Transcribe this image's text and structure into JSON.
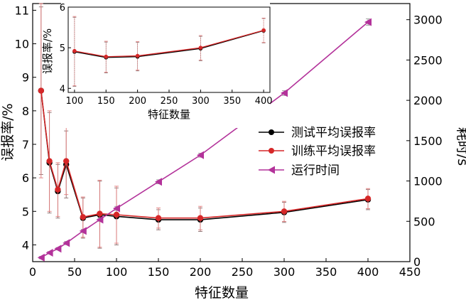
{
  "chart_data": [
    {
      "type": "line",
      "xlabel": "特征数量",
      "ylabel_left": "误报率/%",
      "ylabel_right": "耗时/s",
      "xlim": [
        0,
        450
      ],
      "ylim_left": [
        3.5,
        11.2
      ],
      "ylim_right": [
        0,
        3200
      ],
      "x_ticks": [
        "0",
        "50",
        "100",
        "150",
        "200",
        "250",
        "300",
        "350",
        "400",
        "450"
      ],
      "y_left_ticks": [
        "4",
        "5",
        "6",
        "7",
        "8",
        "9",
        "10",
        "11"
      ],
      "y_right_ticks": [
        "0",
        "500",
        "1000",
        "1500",
        "2000",
        "2500",
        "3000"
      ],
      "legend": {
        "position": "right",
        "entries": [
          "测试平均误报率",
          "训练平均误报率",
          "运行时间"
        ]
      },
      "grid": false,
      "series": [
        {
          "name": "测试平均误报率",
          "axis": "left",
          "color": "#000000",
          "marker": "circle",
          "x": [
            10,
            20,
            30,
            40,
            60,
            80,
            100,
            150,
            200,
            300,
            400
          ],
          "y": [
            8.6,
            6.45,
            5.6,
            6.4,
            4.8,
            4.9,
            4.85,
            4.75,
            4.75,
            4.97,
            5.35
          ],
          "err": [
            2.5,
            1.5,
            0.8,
            1.0,
            0.6,
            1.0,
            0.85,
            0.3,
            0.35,
            0.3,
            0.3
          ]
        },
        {
          "name": "训练平均误报率",
          "axis": "left",
          "color": "#d62728",
          "marker": "circle",
          "x": [
            10,
            20,
            30,
            40,
            60,
            80,
            100,
            150,
            200,
            300,
            400
          ],
          "y": [
            8.6,
            6.5,
            5.65,
            6.5,
            4.83,
            4.93,
            4.9,
            4.8,
            4.8,
            5.0,
            5.38
          ],
          "err": [
            2.6,
            1.5,
            0.8,
            1.0,
            0.6,
            1.0,
            0.85,
            0.3,
            0.35,
            0.3,
            0.3
          ]
        },
        {
          "name": "运行时间",
          "axis": "right",
          "color": "#b3329a",
          "marker": "triangle-left",
          "x": [
            10,
            20,
            30,
            40,
            60,
            80,
            100,
            150,
            200,
            300,
            400
          ],
          "y": [
            50,
            110,
            160,
            230,
            380,
            520,
            660,
            990,
            1320,
            2090,
            2970
          ],
          "err": [
            15,
            15,
            15,
            20,
            20,
            20,
            25,
            25,
            25,
            30,
            40
          ]
        }
      ]
    },
    {
      "type": "line",
      "xlabel": "特征数量",
      "ylabel": "误报率/%",
      "xlim": [
        90,
        410
      ],
      "ylim": [
        3.9,
        6.0
      ],
      "x_ticks": [
        "100",
        "150",
        "200",
        "250",
        "300",
        "350",
        "400"
      ],
      "y_ticks": [
        "4",
        "5",
        "6"
      ],
      "series": [
        {
          "name": "测试平均误报率",
          "color": "#000000",
          "x": [
            100,
            150,
            200,
            300,
            400
          ],
          "y": [
            4.9,
            4.76,
            4.78,
            4.98,
            5.42
          ],
          "err": [
            0.85,
            0.38,
            0.35,
            0.3,
            0.3
          ]
        },
        {
          "name": "训练平均误报率",
          "color": "#d62728",
          "x": [
            100,
            150,
            200,
            300,
            400
          ],
          "y": [
            4.92,
            4.78,
            4.8,
            5.0,
            5.43
          ],
          "err": [
            0.85,
            0.38,
            0.35,
            0.3,
            0.3
          ]
        }
      ]
    }
  ]
}
